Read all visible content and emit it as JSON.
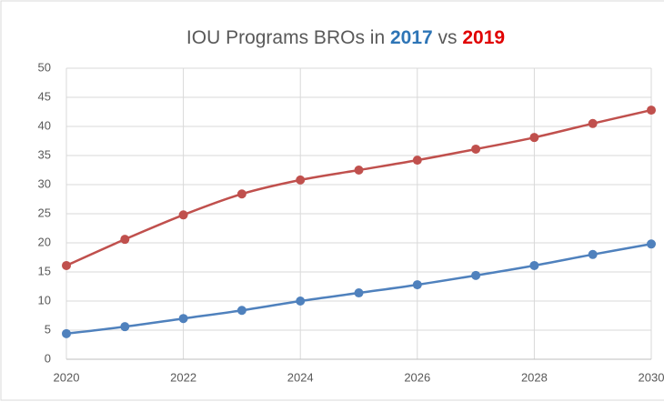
{
  "chart_data": {
    "type": "line",
    "title_parts": [
      {
        "text": "IOU Programs BROs in ",
        "color": "#595959",
        "bold": false
      },
      {
        "text": "2017",
        "color": "#2e75b6",
        "bold": true
      },
      {
        "text": " vs ",
        "color": "#595959",
        "bold": false
      },
      {
        "text": "2019",
        "color": "#e00000",
        "bold": true
      }
    ],
    "x": [
      2020,
      2021,
      2022,
      2023,
      2024,
      2025,
      2026,
      2027,
      2028,
      2029,
      2030
    ],
    "series": [
      {
        "color": "#c0504d",
        "values": [
          16.1,
          20.6,
          24.8,
          28.4,
          30.8,
          32.5,
          34.2,
          36.1,
          38.1,
          40.5,
          42.8
        ]
      },
      {
        "color": "#4f81bd",
        "values": [
          4.4,
          5.6,
          7.0,
          8.4,
          10.0,
          11.4,
          12.8,
          14.4,
          16.1,
          18.0,
          19.8
        ]
      }
    ],
    "xlim": [
      2020,
      2030
    ],
    "xticks": [
      2020,
      2022,
      2024,
      2026,
      2028,
      2030
    ],
    "ylim": [
      0,
      50
    ],
    "yticks": [
      0,
      5,
      10,
      15,
      20,
      25,
      30,
      35,
      40,
      45,
      50
    ],
    "grid": true,
    "smooth": true
  }
}
